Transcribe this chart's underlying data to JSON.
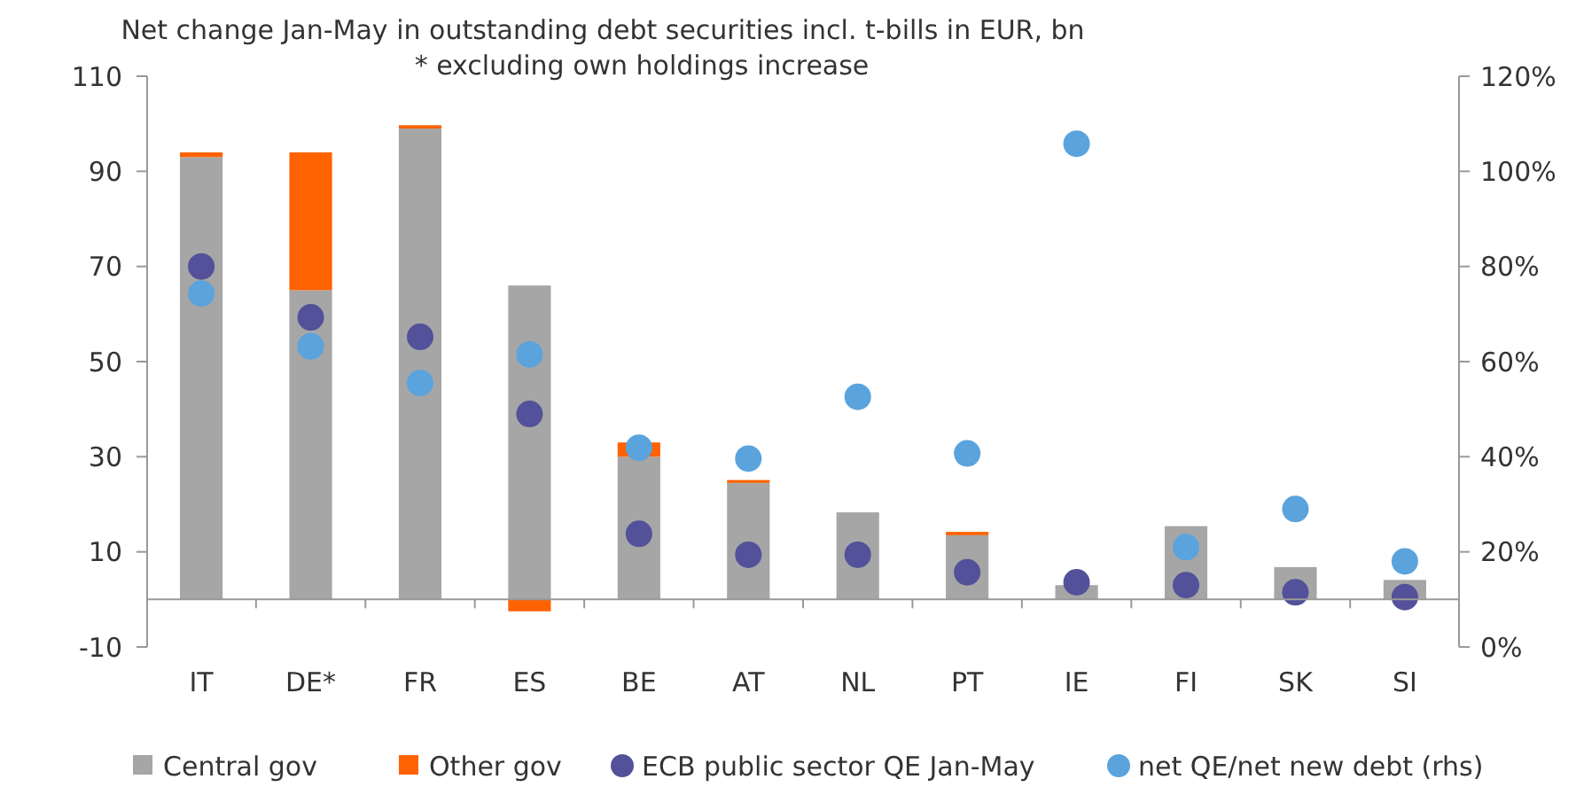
{
  "chart_data": {
    "type": "bar",
    "title": "Net change Jan-May in outstanding debt securities incl. t-bills in EUR, bn",
    "subtitle": "* excluding own holdings increase",
    "categories": [
      "IT",
      "DE*",
      "FR",
      "ES",
      "BE",
      "AT",
      "NL",
      "PT",
      "IE",
      "FI",
      "SK",
      "SI"
    ],
    "stacked": true,
    "series": [
      {
        "name": "Central gov",
        "color": "#a6a6a6",
        "values": [
          93,
          65,
          99,
          66,
          30,
          24.5,
          18.3,
          13.5,
          3,
          15.4,
          6.8,
          4.1
        ]
      },
      {
        "name": "Other gov",
        "color": "#ff6200",
        "values": [
          1,
          29,
          0.7,
          -2.5,
          3,
          0.6,
          null,
          0.7,
          null,
          null,
          null,
          null
        ]
      },
      {
        "name": "ECB public sector QE Jan-May",
        "type": "scatter",
        "color": "#525199",
        "values": [
          70,
          59.3,
          55.2,
          39,
          13.8,
          9.4,
          9.4,
          5.7,
          3.6,
          3,
          1.5,
          0.5
        ]
      },
      {
        "name": "net QE/net new debt (rhs)",
        "type": "scatter",
        "axis": "y2",
        "color": "#5ba3dc",
        "values": [
          74.3,
          63.2,
          55.5,
          61.5,
          41.9,
          39.6,
          52.6,
          40.7,
          105.8,
          21,
          29,
          18
        ]
      }
    ],
    "ylim": [
      -10,
      110
    ],
    "yticks": [
      -10,
      10,
      30,
      50,
      70,
      90,
      110
    ],
    "y2lim": [
      0,
      120
    ],
    "y2ticks": [
      {
        "value": 0,
        "label": "0%"
      },
      {
        "value": 20,
        "label": "20%"
      },
      {
        "value": 40,
        "label": "40%"
      },
      {
        "value": 60,
        "label": "60%"
      },
      {
        "value": 80,
        "label": "80%"
      },
      {
        "value": 100,
        "label": "100%"
      },
      {
        "value": 120,
        "label": "120%"
      }
    ],
    "grid": false,
    "legend": "bottom",
    "marker": "circle"
  }
}
